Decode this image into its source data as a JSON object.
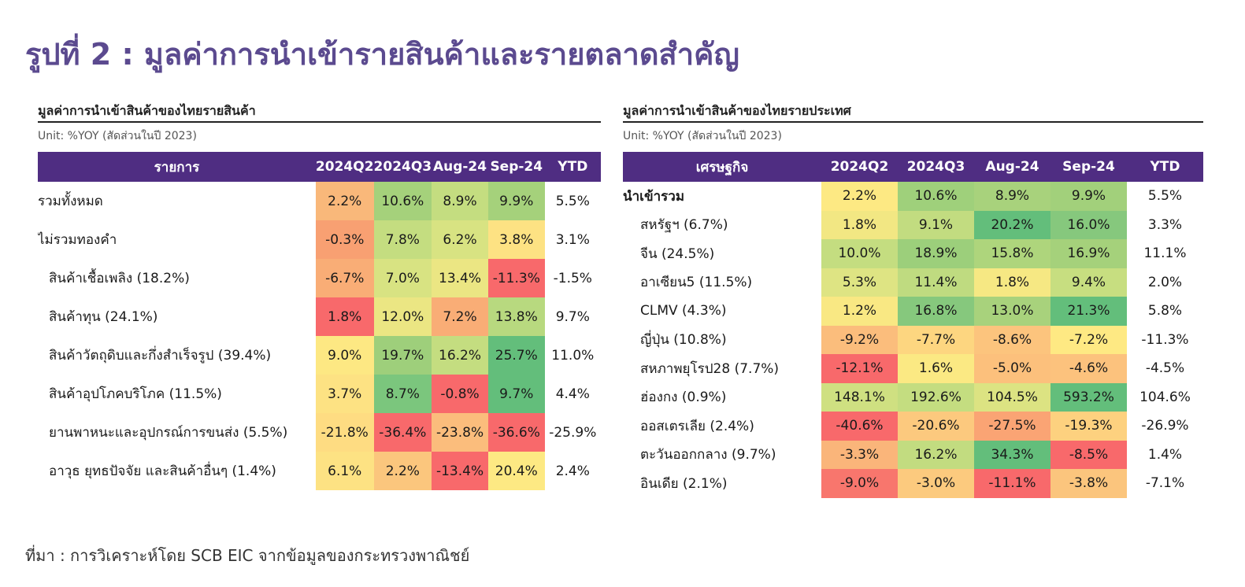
{
  "title": "รูปที่ 2 : มูลค่าการนำเข้ารายสินค้าและรายตลาดสำคัญ",
  "chart_data": [
    {
      "type": "table",
      "title": "มูลค่าการนำเข้าสินค้าของไทยรายสินค้า",
      "unit": "Unit: %YOY (สัดส่วนในปี 2023)",
      "columns": [
        "รายการ",
        "2024Q2",
        "2024Q3",
        "Aug-24",
        "Sep-24",
        "YTD"
      ],
      "rows": [
        {
          "label": "รวมทั้งหมด",
          "indent": 0,
          "values": [
            "2.2%",
            "10.6%",
            "8.9%",
            "9.9%",
            "5.5%"
          ],
          "colors": [
            "#f9b87a",
            "#a5d17b",
            "#c4dd80",
            "#a5d17b"
          ]
        },
        {
          "label": "ไม่รวมทองคำ",
          "indent": 0,
          "values": [
            "-0.3%",
            "7.8%",
            "6.2%",
            "3.8%",
            "3.1%"
          ],
          "colors": [
            "#f8a072",
            "#c4dd80",
            "#d8e382",
            "#fde283"
          ]
        },
        {
          "label": "สินค้าเชื้อเพลิง (18.2%)",
          "indent": 1,
          "values": [
            "-6.7%",
            "7.0%",
            "13.4%",
            "-11.3%",
            "-1.5%"
          ],
          "colors": [
            "#f9ad76",
            "#d8e382",
            "#ebe683",
            "#f8696b"
          ]
        },
        {
          "label": "สินค้าทุน (24.1%)",
          "indent": 1,
          "values": [
            "1.8%",
            "12.0%",
            "7.2%",
            "13.8%",
            "9.7%"
          ],
          "colors": [
            "#f8696b",
            "#ebe683",
            "#f9ad76",
            "#b8d97f"
          ]
        },
        {
          "label": "สินค้าวัตถุดิบและกึ่งสำเร็จรูป (39.4%)",
          "indent": 1,
          "values": [
            "9.0%",
            "19.7%",
            "16.2%",
            "25.7%",
            "11.0%"
          ],
          "colors": [
            "#fde883",
            "#9ecf7b",
            "#c4dd80",
            "#63be7b"
          ]
        },
        {
          "label": "สินค้าอุปโภคบริโภค (11.5%)",
          "indent": 1,
          "values": [
            "3.7%",
            "8.7%",
            "-0.8%",
            "9.7%",
            "4.4%"
          ],
          "colors": [
            "#fde283",
            "#7bc67d",
            "#f8696b",
            "#63be7b"
          ]
        },
        {
          "label": "ยานพาหนะและอุปกรณ์การขนส่ง (5.5%)",
          "indent": 1,
          "values": [
            "-21.8%",
            "-36.4%",
            "-23.8%",
            "-36.6%",
            "-25.9%"
          ],
          "colors": [
            "#fedc82",
            "#f8696b",
            "#fbbd7c",
            "#f8696b"
          ]
        },
        {
          "label": "อาวุธ ยุทธปัจจัย และสินค้าอื่นๆ (1.4%)",
          "indent": 1,
          "values": [
            "6.1%",
            "2.2%",
            "-13.4%",
            "20.4%",
            "2.4%"
          ],
          "colors": [
            "#fde283",
            "#fbc67d",
            "#f8696b",
            "#fde983"
          ]
        }
      ]
    },
    {
      "type": "table",
      "title": "มูลค่าการนำเข้าสินค้าของไทยรายประเทศ",
      "unit": "Unit: %YOY (สัดส่วนในปี 2023)",
      "columns": [
        "เศรษฐกิจ",
        "2024Q2",
        "2024Q3",
        "Aug-24",
        "Sep-24",
        "YTD"
      ],
      "rows": [
        {
          "label": "นำเข้ารวม",
          "indent": 0,
          "values": [
            "2.2%",
            "10.6%",
            "8.9%",
            "9.9%",
            "5.5%"
          ],
          "colors": [
            "#fde983",
            "#9fd07b",
            "#a8d27c",
            "#a2d07b"
          ]
        },
        {
          "label": "สหรัฐฯ (6.7%)",
          "indent": 1,
          "values": [
            "1.8%",
            "9.1%",
            "20.2%",
            "16.0%",
            "3.3%"
          ],
          "colors": [
            "#f2e783",
            "#c2dc80",
            "#63be7b",
            "#86c87d"
          ]
        },
        {
          "label": "จีน (24.5%)",
          "indent": 1,
          "values": [
            "10.0%",
            "18.9%",
            "15.8%",
            "16.9%",
            "11.1%"
          ],
          "colors": [
            "#c4dd80",
            "#9ccf7b",
            "#aed57c",
            "#a5d17b"
          ]
        },
        {
          "label": "อาเซียน5 (11.5%)",
          "indent": 1,
          "values": [
            "5.3%",
            "11.4%",
            "1.8%",
            "9.4%",
            "2.0%"
          ],
          "colors": [
            "#dee483",
            "#bfdb80",
            "#f6e883",
            "#c7de80"
          ]
        },
        {
          "label": "CLMV (4.3%)",
          "indent": 1,
          "values": [
            "1.2%",
            "16.8%",
            "13.0%",
            "21.3%",
            "5.8%"
          ],
          "colors": [
            "#f9e883",
            "#86c87d",
            "#a8d27c",
            "#63be7b"
          ]
        },
        {
          "label": "ญี่ปุ่น (10.8%)",
          "indent": 1,
          "values": [
            "-9.2%",
            "-7.7%",
            "-8.6%",
            "-7.2%",
            "-11.3%"
          ],
          "colors": [
            "#fbbd7c",
            "#fdd680",
            "#fcc47d",
            "#fee983"
          ]
        },
        {
          "label": "สหภาพยุโรป28 (7.7%)",
          "indent": 1,
          "values": [
            "-12.1%",
            "1.6%",
            "-5.0%",
            "-4.6%",
            "-4.5%"
          ],
          "colors": [
            "#f8696b",
            "#fbe983",
            "#fcc07c",
            "#fcc27d"
          ]
        },
        {
          "label": "ฮ่องกง (0.9%)",
          "indent": 1,
          "values": [
            "148.1%",
            "192.6%",
            "104.5%",
            "593.2%",
            "104.6%"
          ],
          "colors": [
            "#cfe081",
            "#c4dd80",
            "#dce382",
            "#63be7b"
          ]
        },
        {
          "label": "ออสเตรเลีย (2.4%)",
          "indent": 1,
          "values": [
            "-40.6%",
            "-20.6%",
            "-27.5%",
            "-19.3%",
            "-26.9%"
          ],
          "colors": [
            "#f8696b",
            "#fcc97e",
            "#faa474",
            "#fdd17f"
          ]
        },
        {
          "label": "ตะวันออกกลาง (9.7%)",
          "indent": 1,
          "values": [
            "-3.3%",
            "16.2%",
            "34.3%",
            "-8.5%",
            "1.4%"
          ],
          "colors": [
            "#fab57a",
            "#c2dc80",
            "#63be7b",
            "#f8696b"
          ]
        },
        {
          "label": "อินเดีย (2.1%)",
          "indent": 1,
          "values": [
            "-9.0%",
            "-3.0%",
            "-11.1%",
            "-3.8%",
            "-7.1%"
          ],
          "colors": [
            "#f8766d",
            "#fcca7e",
            "#f8696b",
            "#fbc57d"
          ]
        }
      ]
    }
  ],
  "sources": "ที่มา : การวิเคราะห์โดย SCB EIC จากข้อมูลของกระทรวงพาณิชย์"
}
